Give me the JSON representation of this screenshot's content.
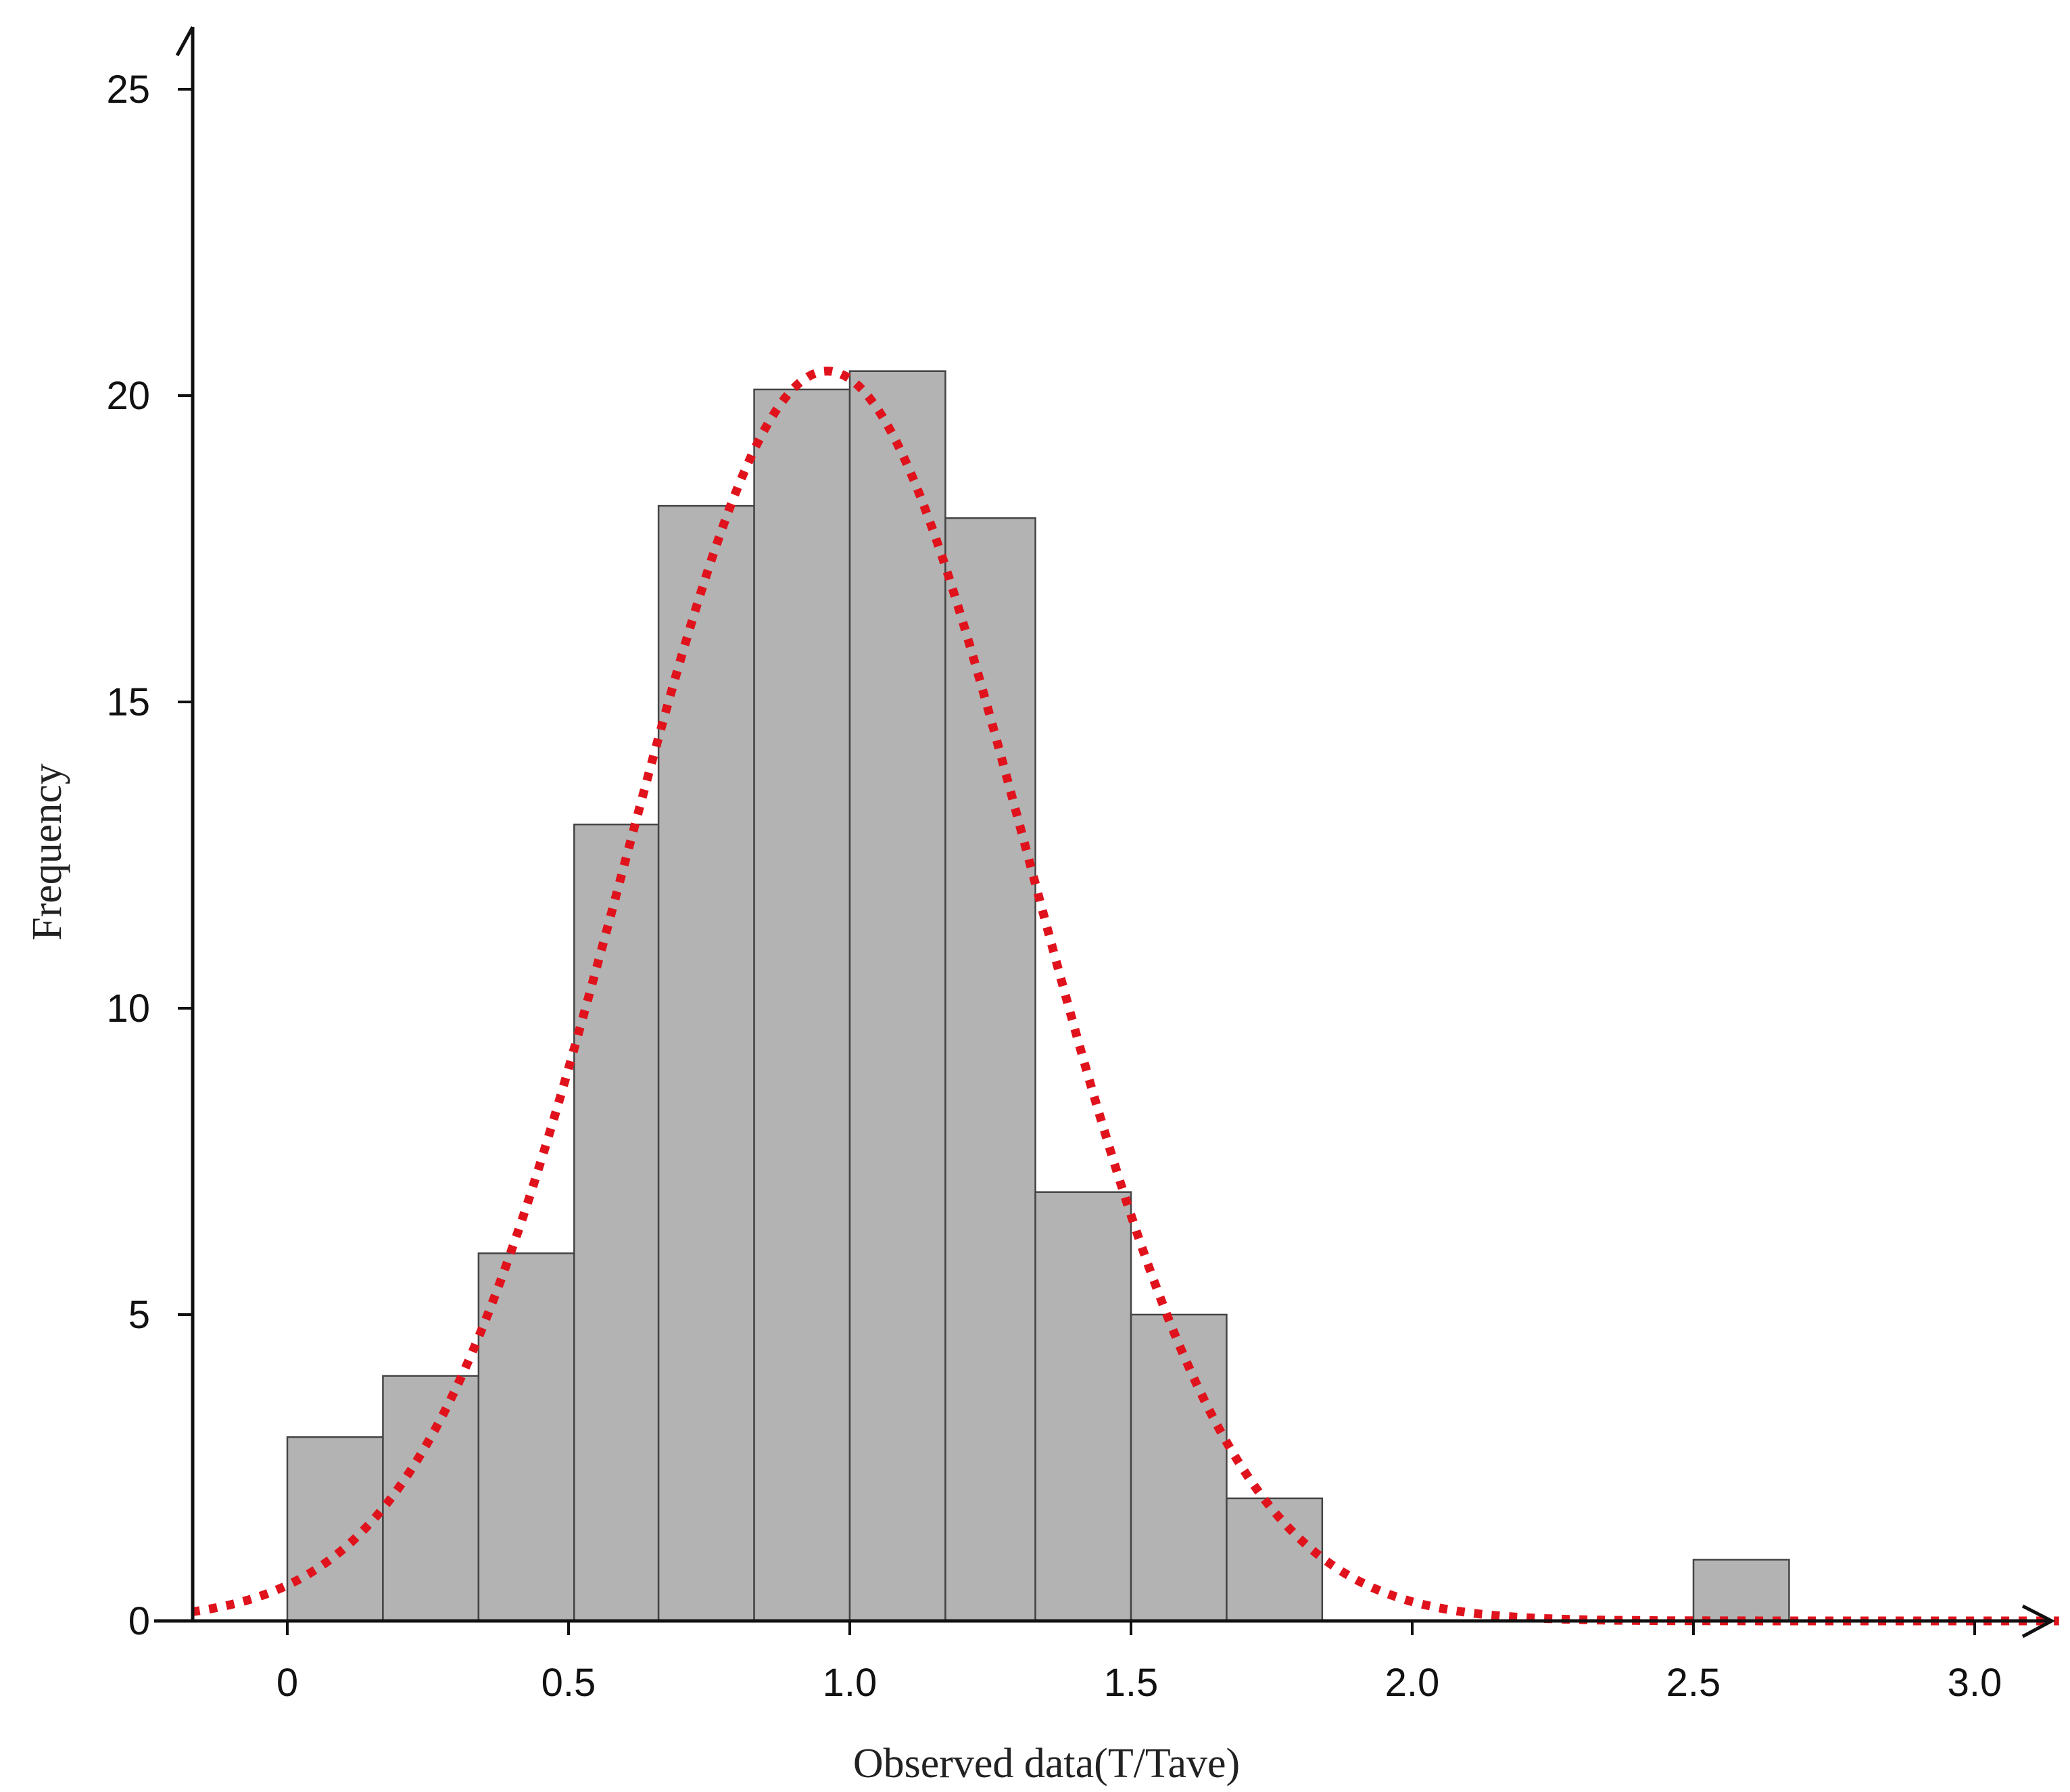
{
  "chart_data": {
    "type": "bar",
    "xlabel": "Observed data(T/Tave)",
    "ylabel": "Frequency",
    "xlim": [
      -0.17,
      3.15
    ],
    "ylim": [
      0,
      25
    ],
    "x_ticks": [
      0,
      0.5,
      1.0,
      1.5,
      2.0,
      2.5,
      3.0
    ],
    "x_tick_labels": [
      "0",
      "0.5",
      "1.0",
      "1.5",
      "2.0",
      "2.5",
      "3.0"
    ],
    "y_ticks": [
      0,
      5,
      10,
      15,
      20,
      25
    ],
    "y_tick_labels": [
      "0",
      "5",
      "10",
      "15",
      "20",
      "25"
    ],
    "bins": [
      {
        "x0": 0.0,
        "x1": 0.17,
        "value": 3
      },
      {
        "x0": 0.17,
        "x1": 0.34,
        "value": 4
      },
      {
        "x0": 0.34,
        "x1": 0.51,
        "value": 6
      },
      {
        "x0": 0.51,
        "x1": 0.66,
        "value": 13
      },
      {
        "x0": 0.66,
        "x1": 0.83,
        "value": 18.2
      },
      {
        "x0": 0.83,
        "x1": 1.0,
        "value": 20.1
      },
      {
        "x0": 1.0,
        "x1": 1.17,
        "value": 20.4
      },
      {
        "x0": 1.17,
        "x1": 1.33,
        "value": 18
      },
      {
        "x0": 1.33,
        "x1": 1.5,
        "value": 7
      },
      {
        "x0": 1.5,
        "x1": 1.67,
        "value": 5
      },
      {
        "x0": 1.67,
        "x1": 1.84,
        "value": 2
      },
      {
        "x0": 2.5,
        "x1": 2.67,
        "value": 1
      }
    ],
    "fit_curve": {
      "style": "dotted",
      "color": "#e0121c",
      "peak_x": 0.96,
      "peak_y": 20.4,
      "sigma": 0.36
    },
    "bar_color": "#b3b3b3",
    "grid": false
  }
}
